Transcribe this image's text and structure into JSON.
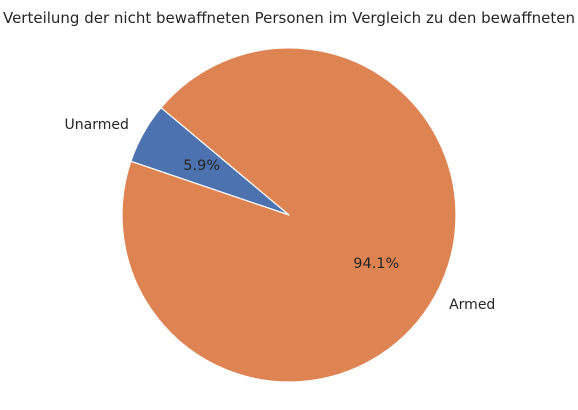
{
  "chart_data": {
    "type": "pie",
    "title": "Verteilung der nicht bewaffneten Personen im Vergleich zu den bewaffneten",
    "categories": [
      "Unarmed",
      "Armed"
    ],
    "values": [
      5.9,
      94.1
    ],
    "value_labels": [
      "5.9%",
      "94.1%"
    ],
    "colors": [
      "#4c72b0",
      "#dd8452"
    ],
    "start_angle_deg": 140,
    "direction": "counterclockwise",
    "edge_color": "#ffffff",
    "legend": "none"
  }
}
